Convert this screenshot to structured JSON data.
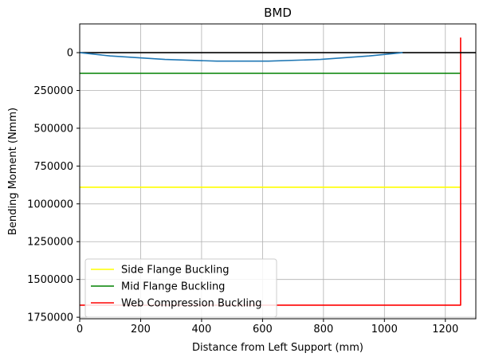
{
  "chart_data": {
    "type": "line",
    "title": "BMD",
    "xlabel": "Distance from Left Support (mm)",
    "ylabel": "Bending Moment (Nmm)",
    "xlim": [
      0,
      1300
    ],
    "ylim": [
      1760000,
      -190000
    ],
    "y_axis_inverted": true,
    "grid": true,
    "legend_placement": "lower-left",
    "x_ticks": [
      "0",
      "200",
      "400",
      "600",
      "800",
      "1000",
      "1200"
    ],
    "x_tick_values": [
      0,
      200,
      400,
      600,
      800,
      1000,
      1200
    ],
    "y_ticks": [
      "0",
      "250000",
      "500000",
      "750000",
      "1000000",
      "1250000",
      "1500000",
      "1750000"
    ],
    "y_tick_values": [
      0,
      250000,
      500000,
      750000,
      1000000,
      1250000,
      1500000,
      1750000
    ],
    "series": [
      {
        "color": "#1f77b4",
        "x": [
          0,
          100,
          280,
          450,
          620,
          790,
          950,
          1060
        ],
        "y": [
          0,
          22000,
          45000,
          56000,
          56000,
          45000,
          22000,
          0
        ]
      },
      {
        "color": "#000000",
        "x": [
          0,
          1300
        ],
        "y": [
          0,
          0
        ]
      },
      {
        "name": "Side Flange Buckling",
        "color": "#ffff00",
        "x": [
          0,
          1250
        ],
        "y": [
          890000,
          890000
        ]
      },
      {
        "name": "Mid Flange Buckling",
        "color": "#008000",
        "x": [
          0,
          1250
        ],
        "y": [
          137000,
          137000
        ]
      },
      {
        "name": "Web Compression Buckling",
        "color": "#ff0000",
        "x": [
          0,
          1250,
          1250
        ],
        "y": [
          1670000,
          1670000,
          -100000
        ]
      }
    ]
  }
}
